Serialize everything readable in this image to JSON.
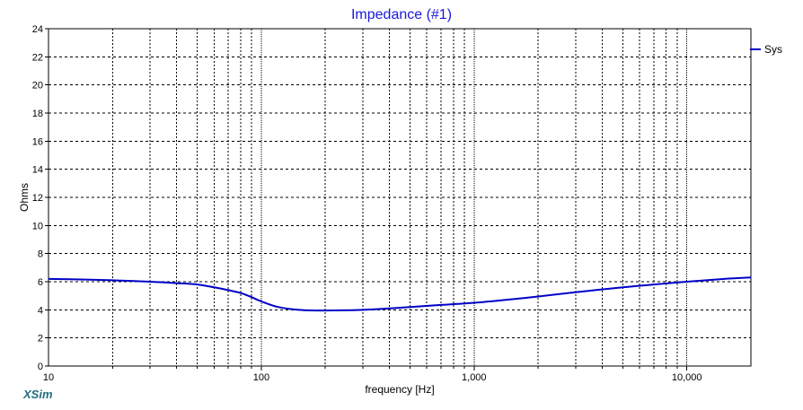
{
  "colors": {
    "line": "#0000c8",
    "title": "#1a1ad8",
    "grid": "#000000",
    "brand": "#1f6e7c"
  },
  "brand": "XSim",
  "chart_data": {
    "type": "line",
    "title": "Impedance (#1)",
    "xlabel": "frequency [Hz]",
    "ylabel": "Ohms",
    "xscale": "log",
    "xlim": [
      10,
      20000
    ],
    "ylim": [
      0,
      24
    ],
    "x_ticks": [
      10,
      100,
      1000,
      10000
    ],
    "x_tick_labels": [
      "10",
      "100",
      "1,000",
      "10,000"
    ],
    "y_ticks": [
      0,
      2,
      4,
      6,
      8,
      10,
      12,
      14,
      16,
      18,
      20,
      22,
      24
    ],
    "y_tick_labels": [
      "0",
      "2",
      "4",
      "6",
      "8",
      "10",
      "12",
      "14",
      "16",
      "18",
      "20",
      "22",
      "24"
    ],
    "grid": true,
    "legend_position": "top-right",
    "series": [
      {
        "name": "Sys",
        "x": [
          10,
          15,
          20,
          30,
          40,
          50,
          60,
          70,
          80,
          90,
          100,
          120,
          150,
          200,
          300,
          400,
          500,
          700,
          1000,
          1500,
          2000,
          3000,
          5000,
          7000,
          10000,
          15000,
          20000
        ],
        "y": [
          6.2,
          6.15,
          6.1,
          6.0,
          5.9,
          5.8,
          5.6,
          5.4,
          5.2,
          4.9,
          4.6,
          4.2,
          4.0,
          3.95,
          4.0,
          4.1,
          4.2,
          4.35,
          4.5,
          4.75,
          4.95,
          5.25,
          5.6,
          5.8,
          6.0,
          6.2,
          6.3
        ]
      }
    ]
  }
}
